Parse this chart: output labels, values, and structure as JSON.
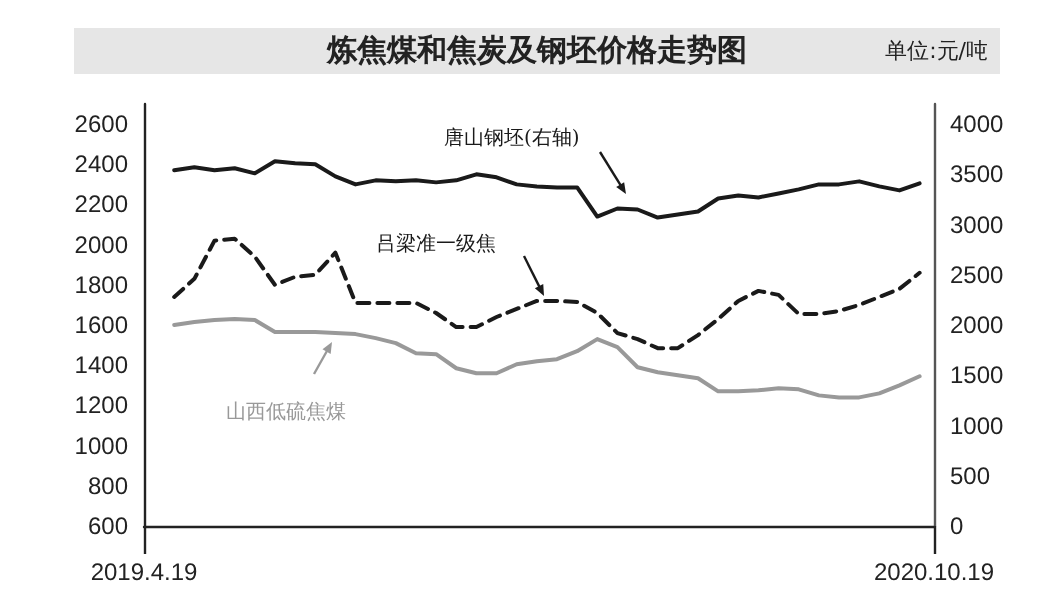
{
  "chart_data": {
    "type": "line",
    "title": "炼焦煤和焦炭及钢坯价格走势图",
    "annotations": [
      "单位:元/吨"
    ],
    "x": [
      "2019-05-10",
      "2019-05-24",
      "2019-06-07",
      "2019-06-21",
      "2019-07-05",
      "2019-07-19",
      "2019-08-02",
      "2019-08-16",
      "2019-08-30",
      "2019-09-13",
      "2019-09-27",
      "2019-10-11",
      "2019-10-25",
      "2019-11-08",
      "2019-11-22",
      "2019-12-06",
      "2019-12-20",
      "2020-01-03",
      "2020-01-17",
      "2020-01-31",
      "2020-02-14",
      "2020-02-28",
      "2020-03-13",
      "2020-03-27",
      "2020-04-10",
      "2020-04-24",
      "2020-05-08",
      "2020-05-22",
      "2020-06-05",
      "2020-06-19",
      "2020-07-03",
      "2020-07-17",
      "2020-07-31",
      "2020-08-14",
      "2020-08-28",
      "2020-09-11",
      "2020-09-25",
      "2020-10-09"
    ],
    "series": [
      {
        "name": "唐山钢坯(右轴)",
        "color": "#1a1a1a",
        "axis": "y2",
        "line_style": "solid",
        "values": [
          3540,
          3570,
          3540,
          3560,
          3510,
          3630,
          3610,
          3600,
          3480,
          3400,
          3440,
          3430,
          3440,
          3420,
          3440,
          3500,
          3470,
          3400,
          3380,
          3370,
          3370,
          3080,
          3160,
          3150,
          3070,
          3100,
          3130,
          3260,
          3290,
          3270,
          3310,
          3350,
          3400,
          3400,
          3430,
          3380,
          3340,
          3410
        ]
      },
      {
        "name": "吕梁准一级焦",
        "color": "#1a1a1a",
        "line_style": "dashed",
        "values": [
          1740,
          1830,
          2020,
          2030,
          1940,
          1800,
          1840,
          1850,
          1960,
          1710,
          1710,
          1710,
          1710,
          1660,
          1590,
          1590,
          1640,
          1680,
          1720,
          1720,
          1715,
          1660,
          1560,
          1530,
          1485,
          1485,
          1550,
          1630,
          1720,
          1770,
          1750,
          1655,
          1655,
          1670,
          1700,
          1740,
          1780,
          1860
        ]
      },
      {
        "name": "山西低硫焦煤",
        "color": "#999999",
        "line_style": "solid",
        "values": [
          1600,
          1615,
          1625,
          1630,
          1625,
          1565,
          1565,
          1565,
          1560,
          1555,
          1535,
          1510,
          1460,
          1455,
          1385,
          1360,
          1360,
          1405,
          1420,
          1430,
          1470,
          1530,
          1490,
          1390,
          1365,
          1350,
          1335,
          1270,
          1270,
          1275,
          1285,
          1280,
          1250,
          1240,
          1240,
          1260,
          1300,
          1345
        ]
      }
    ],
    "xlim": [
      "2019-04-19",
      "2020-10-19"
    ],
    "xticks": [
      {
        "value": "2019-04-19",
        "label": "2019.4.19"
      },
      {
        "value": "2020-10-19",
        "label": "2020.10.19"
      }
    ],
    "ylim": [
      600,
      2700
    ],
    "yticks": [
      600,
      800,
      1000,
      1200,
      1400,
      1600,
      1800,
      2000,
      2200,
      2400,
      2600
    ],
    "y2lim": [
      0,
      4200
    ],
    "y2ticks": [
      0,
      500,
      1000,
      1500,
      2000,
      2500,
      3000,
      3500,
      4000
    ],
    "grid": false,
    "legend": false,
    "marker": "none"
  }
}
